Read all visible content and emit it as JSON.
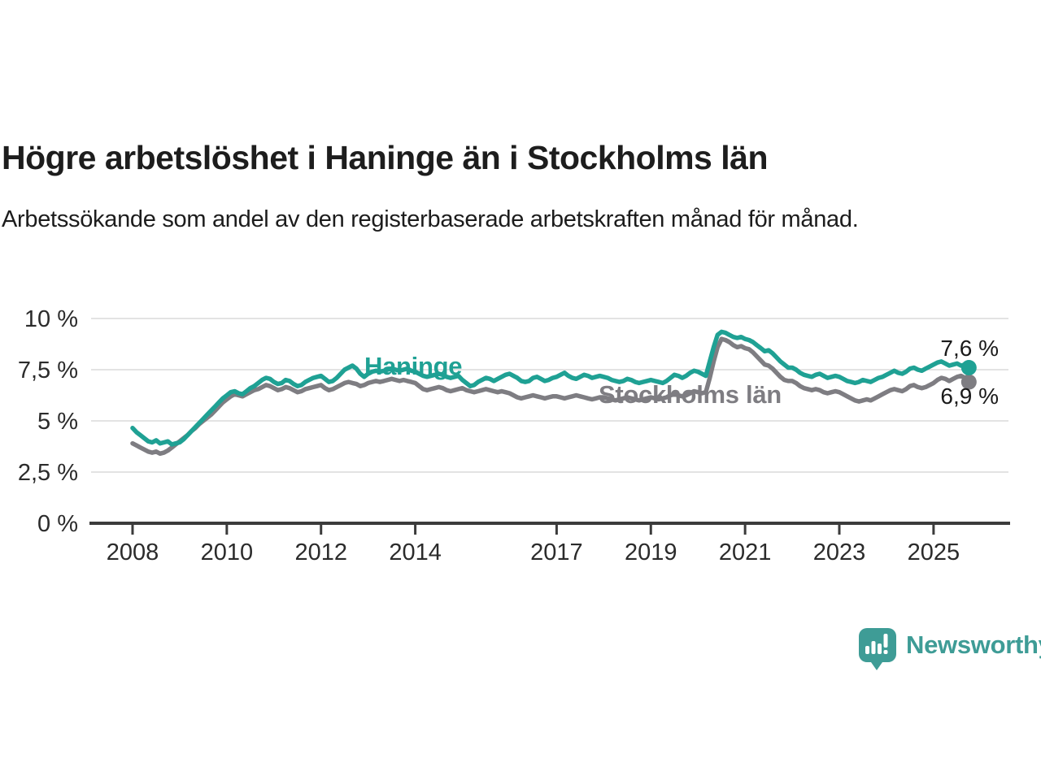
{
  "header": {
    "title": "Högre arbetslöshet i Haninge än i Stockholms län",
    "subtitle": "Arbetssökande som andel av den registerbaserade arbetskraften månad för månad."
  },
  "chart_data": {
    "type": "line",
    "title": "Högre arbetslöshet i Haninge än i Stockholms län",
    "xlabel": "",
    "ylabel": "",
    "grid": "horizontal",
    "legend": "inline-labels",
    "xlim": [
      2007.12,
      2026.59
    ],
    "ylim": [
      0,
      10
    ],
    "x_axis_ticks": [
      2008,
      2010,
      2012,
      2014,
      2017,
      2019,
      2021,
      2023,
      2025
    ],
    "y_axis_ticks": [
      {
        "value": 10,
        "label": "10 %"
      },
      {
        "value": 7.5,
        "label": "7,5 %"
      },
      {
        "value": 5,
        "label": "5 %"
      },
      {
        "value": 2.5,
        "label": "2,5 %"
      },
      {
        "value": 0,
        "label": "0 %"
      }
    ],
    "x_start_year": 2008.0,
    "x_step_years": 0.0833333,
    "series": [
      {
        "name": "Haninge",
        "color": "#1FA194",
        "end_label": "7,6 %",
        "end_value": 7.6,
        "values": [
          4.65,
          4.45,
          4.3,
          4.15,
          4.0,
          3.95,
          4.05,
          3.9,
          3.95,
          4.0,
          3.85,
          3.9,
          3.95,
          4.1,
          4.3,
          4.5,
          4.7,
          4.9,
          5.1,
          5.3,
          5.5,
          5.7,
          5.9,
          6.1,
          6.25,
          6.4,
          6.45,
          6.35,
          6.3,
          6.45,
          6.6,
          6.7,
          6.85,
          7.0,
          7.1,
          7.05,
          6.9,
          6.8,
          6.85,
          7.0,
          6.95,
          6.8,
          6.7,
          6.75,
          6.9,
          7.0,
          7.1,
          7.15,
          7.2,
          7.05,
          6.9,
          6.95,
          7.1,
          7.3,
          7.5,
          7.6,
          7.7,
          7.55,
          7.3,
          7.15,
          7.3,
          7.4,
          7.45,
          7.4,
          7.45,
          7.5,
          7.55,
          7.5,
          7.45,
          7.5,
          7.55,
          7.45,
          7.4,
          7.3,
          7.2,
          7.15,
          7.2,
          7.25,
          7.3,
          7.25,
          7.15,
          7.1,
          7.15,
          7.2,
          7.0,
          6.85,
          6.7,
          6.75,
          6.9,
          7.0,
          7.1,
          7.05,
          6.95,
          7.05,
          7.15,
          7.25,
          7.3,
          7.2,
          7.1,
          6.95,
          6.9,
          6.95,
          7.1,
          7.15,
          7.05,
          6.95,
          7.0,
          7.1,
          7.15,
          7.25,
          7.35,
          7.2,
          7.1,
          7.05,
          7.15,
          7.25,
          7.2,
          7.1,
          7.15,
          7.2,
          7.15,
          7.1,
          7.0,
          6.95,
          6.9,
          6.95,
          7.05,
          7.0,
          6.9,
          6.85,
          6.9,
          6.95,
          7.0,
          6.95,
          6.9,
          6.85,
          6.95,
          7.1,
          7.25,
          7.2,
          7.1,
          7.2,
          7.35,
          7.45,
          7.4,
          7.3,
          7.2,
          7.9,
          8.6,
          9.2,
          9.35,
          9.3,
          9.2,
          9.1,
          9.05,
          9.1,
          9.0,
          8.95,
          8.85,
          8.7,
          8.55,
          8.4,
          8.45,
          8.3,
          8.1,
          7.9,
          7.75,
          7.6,
          7.6,
          7.5,
          7.35,
          7.25,
          7.2,
          7.15,
          7.25,
          7.3,
          7.2,
          7.1,
          7.15,
          7.2,
          7.15,
          7.05,
          6.95,
          6.9,
          6.85,
          6.9,
          7.0,
          6.95,
          6.9,
          7.0,
          7.1,
          7.15,
          7.25,
          7.35,
          7.45,
          7.35,
          7.3,
          7.4,
          7.55,
          7.6,
          7.5,
          7.45,
          7.55,
          7.65,
          7.75,
          7.85,
          7.9,
          7.8,
          7.7,
          7.75,
          7.8,
          7.7,
          7.75,
          7.6
        ]
      },
      {
        "name": "Stockholms län",
        "color": "#7E7D82",
        "end_label": "6,9 %",
        "end_value": 6.9,
        "values": [
          3.9,
          3.8,
          3.7,
          3.6,
          3.5,
          3.45,
          3.5,
          3.4,
          3.45,
          3.55,
          3.7,
          3.85,
          4.0,
          4.15,
          4.3,
          4.5,
          4.65,
          4.85,
          5.0,
          5.15,
          5.3,
          5.5,
          5.7,
          5.9,
          6.05,
          6.2,
          6.3,
          6.25,
          6.2,
          6.3,
          6.4,
          6.5,
          6.55,
          6.65,
          6.75,
          6.7,
          6.6,
          6.5,
          6.55,
          6.65,
          6.6,
          6.5,
          6.4,
          6.45,
          6.55,
          6.6,
          6.65,
          6.7,
          6.75,
          6.6,
          6.5,
          6.55,
          6.65,
          6.75,
          6.85,
          6.9,
          6.85,
          6.8,
          6.7,
          6.75,
          6.85,
          6.9,
          6.95,
          6.9,
          6.95,
          7.0,
          7.05,
          7.0,
          6.95,
          7.0,
          6.95,
          6.9,
          6.85,
          6.7,
          6.55,
          6.5,
          6.55,
          6.6,
          6.65,
          6.6,
          6.5,
          6.45,
          6.5,
          6.55,
          6.6,
          6.5,
          6.45,
          6.4,
          6.45,
          6.5,
          6.55,
          6.5,
          6.45,
          6.4,
          6.45,
          6.4,
          6.35,
          6.25,
          6.15,
          6.1,
          6.15,
          6.2,
          6.25,
          6.2,
          6.15,
          6.1,
          6.15,
          6.2,
          6.2,
          6.15,
          6.1,
          6.15,
          6.2,
          6.25,
          6.2,
          6.15,
          6.1,
          6.05,
          6.1,
          6.15,
          6.15,
          6.1,
          6.05,
          6.0,
          6.05,
          6.1,
          6.15,
          6.1,
          6.05,
          6.0,
          6.05,
          6.1,
          6.15,
          6.1,
          6.05,
          6.1,
          6.15,
          6.25,
          6.3,
          6.25,
          6.2,
          6.25,
          6.35,
          6.45,
          6.4,
          6.35,
          6.4,
          7.1,
          7.9,
          8.6,
          9.0,
          8.95,
          8.85,
          8.7,
          8.6,
          8.65,
          8.55,
          8.5,
          8.35,
          8.15,
          7.95,
          7.75,
          7.7,
          7.55,
          7.35,
          7.15,
          7.0,
          6.95,
          6.95,
          6.85,
          6.7,
          6.6,
          6.55,
          6.5,
          6.55,
          6.5,
          6.4,
          6.35,
          6.4,
          6.45,
          6.4,
          6.3,
          6.2,
          6.1,
          6.0,
          5.95,
          6.0,
          6.05,
          6.0,
          6.1,
          6.2,
          6.3,
          6.4,
          6.5,
          6.55,
          6.5,
          6.45,
          6.55,
          6.7,
          6.75,
          6.65,
          6.6,
          6.65,
          6.75,
          6.85,
          7.0,
          7.1,
          7.05,
          6.95,
          7.05,
          7.15,
          7.2,
          7.1,
          6.9
        ]
      }
    ]
  },
  "branding": {
    "logo_text": "Newsworthy"
  },
  "colors": {
    "haninge_line": "#1FA194",
    "stockholm_line": "#7E7D82",
    "gridline": "#DADADA",
    "axis": "#3B3B3B",
    "text": "#1d1d1d",
    "logo_teal": "#3E9C96",
    "background": "#FFFFFF"
  }
}
